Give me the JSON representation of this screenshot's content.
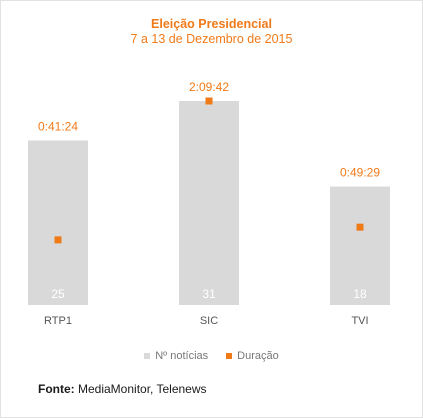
{
  "chart_data": {
    "type": "bar",
    "title": "Eleição Presidencial",
    "subtitle": "7 a 13 de Dezembro de 2015",
    "categories": [
      "RTP1",
      "SIC",
      "TVI"
    ],
    "series": [
      {
        "name": "Nº notícias",
        "kind": "bar",
        "values": [
          25,
          31,
          18
        ],
        "labels": [
          "25",
          "31",
          "18"
        ]
      },
      {
        "name": "Duração",
        "kind": "marker",
        "values_seconds": [
          2484,
          7782,
          2969
        ],
        "labels": [
          "0:41:24",
          "2:09:42",
          "0:49:29"
        ]
      }
    ],
    "ylim_bars": [
      0,
      31
    ],
    "ylim_duration_seconds": [
      0,
      7782
    ],
    "grid": false,
    "legend_position": "bottom",
    "colors": {
      "bar": "#d9d9d9",
      "marker": "#f07a18",
      "bar_label": "#ffffff"
    }
  },
  "source": {
    "label": "Fonte:",
    "text": "MediaMonitor, Telenews"
  }
}
